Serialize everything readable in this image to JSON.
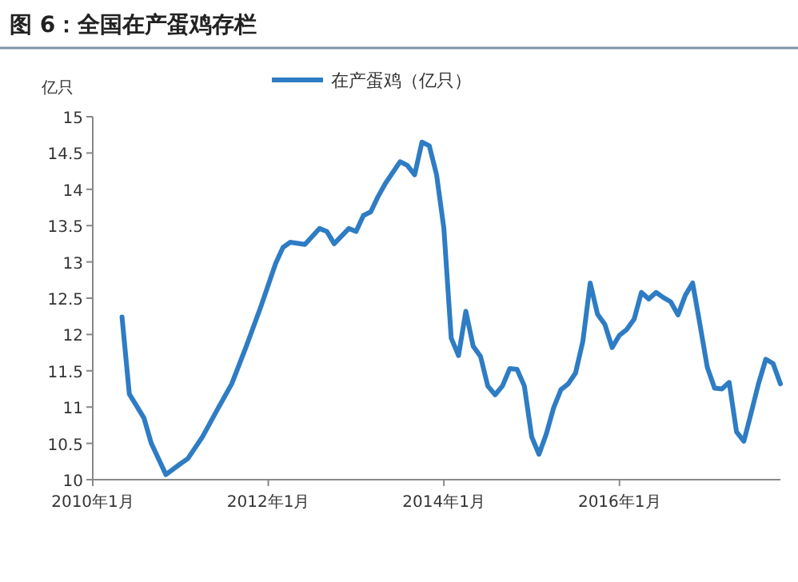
{
  "chart_data": {
    "type": "line",
    "title": "图 6：全国在产蛋鸡存栏",
    "ylabel": "亿只",
    "legend": "top",
    "grid": false,
    "x": [
      "2010-05",
      "2010-06",
      "2010-08",
      "2010-09",
      "2010-11",
      "2011-01",
      "2011-02",
      "2011-04",
      "2011-06",
      "2011-08",
      "2011-10",
      "2011-12",
      "2012-02",
      "2012-03",
      "2012-04",
      "2012-06",
      "2012-08",
      "2012-09",
      "2012-10",
      "2012-12",
      "2013-01",
      "2013-02",
      "2013-03",
      "2013-04",
      "2013-05",
      "2013-07",
      "2013-08",
      "2013-09",
      "2013-10",
      "2013-11",
      "2013-12",
      "2014-01",
      "2014-02",
      "2014-03",
      "2014-04",
      "2014-05",
      "2014-06",
      "2014-07",
      "2014-08",
      "2014-09",
      "2014-10",
      "2014-11",
      "2014-12",
      "2015-01",
      "2015-02",
      "2015-03",
      "2015-04",
      "2015-05",
      "2015-06",
      "2015-07",
      "2015-08",
      "2015-09",
      "2015-10",
      "2015-11",
      "2015-12",
      "2016-01",
      "2016-02",
      "2016-03",
      "2016-04",
      "2016-05",
      "2016-06",
      "2016-07",
      "2016-08",
      "2016-09",
      "2016-10",
      "2016-11",
      "2016-12",
      "2017-01",
      "2017-02",
      "2017-03",
      "2017-04",
      "2017-05",
      "2017-06",
      "2017-07",
      "2017-08",
      "2017-09",
      "2017-10",
      "2017-11"
    ],
    "series": [
      {
        "name": "在产蛋鸡（亿只）",
        "color": "#2e7cc4",
        "values": [
          12.24,
          11.18,
          10.85,
          10.5,
          10.07,
          10.22,
          10.29,
          10.59,
          10.96,
          11.32,
          11.84,
          12.39,
          12.98,
          13.2,
          13.27,
          13.24,
          13.46,
          13.42,
          13.25,
          13.46,
          13.42,
          13.64,
          13.69,
          13.9,
          14.08,
          14.38,
          14.33,
          14.2,
          14.65,
          14.6,
          14.2,
          13.46,
          11.95,
          11.71,
          12.32,
          11.84,
          11.7,
          11.29,
          11.17,
          11.29,
          11.53,
          11.52,
          11.29,
          10.59,
          10.35,
          10.63,
          10.99,
          11.24,
          11.32,
          11.47,
          11.91,
          12.71,
          12.28,
          12.14,
          11.82,
          11.99,
          12.07,
          12.21,
          12.58,
          12.49,
          12.58,
          12.51,
          12.45,
          12.27,
          12.54,
          12.71,
          12.14,
          11.55,
          11.26,
          11.25,
          11.34,
          10.66,
          10.53,
          10.92,
          11.32,
          11.66,
          11.6,
          11.32
        ]
      }
    ],
    "xlim": [
      "2010-01",
      "2017-11"
    ],
    "xticks": [
      {
        "value": "2010-01",
        "label": "2010年1月"
      },
      {
        "value": "2012-01",
        "label": "2012年1月"
      },
      {
        "value": "2014-01",
        "label": "2014年1月"
      },
      {
        "value": "2016-01",
        "label": "2016年1月"
      }
    ],
    "ylim": [
      10,
      15
    ],
    "yticks": [
      10,
      {
        "value": 10.5,
        "label": "10.5"
      },
      11,
      {
        "value": 11.5,
        "label": "11.5"
      },
      12,
      {
        "value": 12.5,
        "label": "12.5"
      },
      13,
      {
        "value": 13.5,
        "label": "13.5"
      },
      14,
      {
        "value": 14.5,
        "label": "14.5"
      },
      15
    ]
  }
}
